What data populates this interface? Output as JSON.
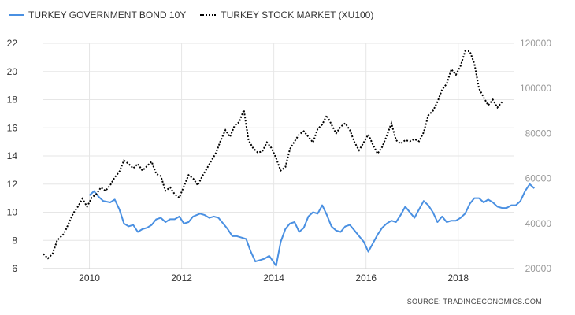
{
  "legend": {
    "series1": "TURKEY GOVERNMENT BOND 10Y",
    "series2": "TURKEY STOCK MARKET (XU100)"
  },
  "source": "SOURCE:  TRADINGECONOMICS.COM",
  "colors": {
    "bond": "#4a90e2",
    "stock": "#000000",
    "grid": "#e6e6e6"
  },
  "chart_data": {
    "type": "line",
    "grid": true,
    "legend_position": "top-left",
    "x_ticks": [
      2010,
      2012,
      2014,
      2016,
      2018
    ],
    "xlim": [
      2009.0,
      2019.2
    ],
    "y_left": {
      "ticks": [
        6,
        8,
        10,
        12,
        14,
        16,
        18,
        20,
        22
      ],
      "lim": [
        6,
        22
      ]
    },
    "y_right": {
      "ticks": [
        20000,
        40000,
        60000,
        80000,
        100000,
        120000
      ],
      "lim": [
        20000,
        120000
      ]
    },
    "series": [
      {
        "name": "TURKEY GOVERNMENT BOND 10Y",
        "axis": "left",
        "style": "solid",
        "points": [
          [
            2010.0,
            11.2
          ],
          [
            2010.1,
            11.5
          ],
          [
            2010.2,
            11.1
          ],
          [
            2010.3,
            10.8
          ],
          [
            2010.45,
            10.7
          ],
          [
            2010.55,
            10.9
          ],
          [
            2010.65,
            10.2
          ],
          [
            2010.75,
            9.2
          ],
          [
            2010.85,
            9.0
          ],
          [
            2010.95,
            9.1
          ],
          [
            2011.05,
            8.6
          ],
          [
            2011.15,
            8.8
          ],
          [
            2011.25,
            8.9
          ],
          [
            2011.35,
            9.1
          ],
          [
            2011.45,
            9.5
          ],
          [
            2011.55,
            9.6
          ],
          [
            2011.65,
            9.3
          ],
          [
            2011.75,
            9.5
          ],
          [
            2011.85,
            9.5
          ],
          [
            2011.95,
            9.7
          ],
          [
            2012.05,
            9.2
          ],
          [
            2012.15,
            9.3
          ],
          [
            2012.25,
            9.7
          ],
          [
            2012.4,
            9.9
          ],
          [
            2012.5,
            9.8
          ],
          [
            2012.6,
            9.6
          ],
          [
            2012.7,
            9.7
          ],
          [
            2012.8,
            9.6
          ],
          [
            2012.9,
            9.2
          ],
          [
            2013.0,
            8.8
          ],
          [
            2013.1,
            8.3
          ],
          [
            2013.2,
            8.3
          ],
          [
            2013.3,
            8.2
          ],
          [
            2013.4,
            8.1
          ],
          [
            2013.5,
            7.2
          ],
          [
            2013.6,
            6.5
          ],
          [
            2013.7,
            6.6
          ],
          [
            2013.8,
            6.7
          ],
          [
            2013.9,
            6.9
          ],
          [
            2014.05,
            6.2
          ],
          [
            2014.15,
            7.9
          ],
          [
            2014.25,
            8.8
          ],
          [
            2014.35,
            9.2
          ],
          [
            2014.45,
            9.3
          ],
          [
            2014.55,
            8.6
          ],
          [
            2014.65,
            8.9
          ],
          [
            2014.75,
            9.7
          ],
          [
            2014.85,
            10.0
          ],
          [
            2014.95,
            9.9
          ],
          [
            2015.05,
            10.5
          ],
          [
            2015.15,
            9.8
          ],
          [
            2015.25,
            9.0
          ],
          [
            2015.35,
            8.7
          ],
          [
            2015.45,
            8.6
          ],
          [
            2015.55,
            9.0
          ],
          [
            2015.65,
            9.1
          ],
          [
            2015.75,
            8.7
          ],
          [
            2015.85,
            8.3
          ],
          [
            2015.95,
            7.9
          ],
          [
            2016.05,
            7.2
          ],
          [
            2016.15,
            7.8
          ],
          [
            2016.25,
            8.4
          ],
          [
            2016.35,
            8.9
          ],
          [
            2016.45,
            9.2
          ],
          [
            2016.55,
            9.4
          ],
          [
            2016.65,
            9.3
          ],
          [
            2016.75,
            9.8
          ],
          [
            2016.85,
            10.4
          ],
          [
            2016.95,
            10.0
          ],
          [
            2017.05,
            9.6
          ],
          [
            2017.15,
            10.2
          ],
          [
            2017.25,
            10.8
          ],
          [
            2017.35,
            10.5
          ],
          [
            2017.45,
            10.0
          ],
          [
            2017.55,
            9.3
          ],
          [
            2017.65,
            9.7
          ],
          [
            2017.75,
            9.3
          ],
          [
            2017.85,
            9.4
          ],
          [
            2017.95,
            9.4
          ],
          [
            2018.05,
            9.6
          ],
          [
            2018.15,
            9.9
          ],
          [
            2018.25,
            10.6
          ],
          [
            2018.35,
            11.0
          ],
          [
            2018.45,
            11.0
          ],
          [
            2018.55,
            10.7
          ],
          [
            2018.65,
            10.9
          ],
          [
            2018.75,
            10.7
          ],
          [
            2018.85,
            10.4
          ],
          [
            2018.95,
            10.3
          ],
          [
            2019.05,
            10.3
          ],
          [
            2019.15,
            10.5
          ],
          [
            2019.25,
            10.5
          ],
          [
            2019.35,
            10.8
          ],
          [
            2019.45,
            11.5
          ],
          [
            2019.55,
            12.0
          ],
          [
            2019.65,
            11.7
          ]
        ]
      },
      {
        "name": "TURKEY STOCK MARKET (XU100)",
        "axis": "right",
        "style": "dotted",
        "points": [
          [
            2009.0,
            26500
          ],
          [
            2009.1,
            24500
          ],
          [
            2009.2,
            26500
          ],
          [
            2009.3,
            32500
          ],
          [
            2009.45,
            35500
          ],
          [
            2009.55,
            40000
          ],
          [
            2009.65,
            44500
          ],
          [
            2009.75,
            47500
          ],
          [
            2009.85,
            51000
          ],
          [
            2009.95,
            47500
          ],
          [
            2010.05,
            51500
          ],
          [
            2010.15,
            53000
          ],
          [
            2010.25,
            56000
          ],
          [
            2010.35,
            54500
          ],
          [
            2010.45,
            57000
          ],
          [
            2010.55,
            60500
          ],
          [
            2010.65,
            63000
          ],
          [
            2010.75,
            68000
          ],
          [
            2010.85,
            66500
          ],
          [
            2010.95,
            64500
          ],
          [
            2011.05,
            66500
          ],
          [
            2011.15,
            63500
          ],
          [
            2011.25,
            65500
          ],
          [
            2011.35,
            67500
          ],
          [
            2011.45,
            62000
          ],
          [
            2011.55,
            61000
          ],
          [
            2011.65,
            54500
          ],
          [
            2011.75,
            56000
          ],
          [
            2011.85,
            53000
          ],
          [
            2011.95,
            51500
          ],
          [
            2012.05,
            56500
          ],
          [
            2012.15,
            61500
          ],
          [
            2012.25,
            60000
          ],
          [
            2012.35,
            57000
          ],
          [
            2012.45,
            61000
          ],
          [
            2012.55,
            64500
          ],
          [
            2012.65,
            68000
          ],
          [
            2012.75,
            71500
          ],
          [
            2012.85,
            77000
          ],
          [
            2012.95,
            81500
          ],
          [
            2013.05,
            78500
          ],
          [
            2013.15,
            83500
          ],
          [
            2013.25,
            85000
          ],
          [
            2013.35,
            90500
          ],
          [
            2013.45,
            77000
          ],
          [
            2013.55,
            73500
          ],
          [
            2013.65,
            71500
          ],
          [
            2013.75,
            72000
          ],
          [
            2013.85,
            76000
          ],
          [
            2013.95,
            73500
          ],
          [
            2014.05,
            69000
          ],
          [
            2014.15,
            63500
          ],
          [
            2014.25,
            65000
          ],
          [
            2014.35,
            73000
          ],
          [
            2014.45,
            76500
          ],
          [
            2014.55,
            79500
          ],
          [
            2014.65,
            81000
          ],
          [
            2014.75,
            78500
          ],
          [
            2014.85,
            76000
          ],
          [
            2014.95,
            82000
          ],
          [
            2015.05,
            84000
          ],
          [
            2015.15,
            88000
          ],
          [
            2015.25,
            84000
          ],
          [
            2015.35,
            80000
          ],
          [
            2015.45,
            83000
          ],
          [
            2015.55,
            84500
          ],
          [
            2015.65,
            81500
          ],
          [
            2015.75,
            76000
          ],
          [
            2015.85,
            72500
          ],
          [
            2015.95,
            76000
          ],
          [
            2016.05,
            79500
          ],
          [
            2016.15,
            75000
          ],
          [
            2016.25,
            71000
          ],
          [
            2016.35,
            74000
          ],
          [
            2016.45,
            79000
          ],
          [
            2016.55,
            84500
          ],
          [
            2016.65,
            77000
          ],
          [
            2016.75,
            75500
          ],
          [
            2016.85,
            77000
          ],
          [
            2016.95,
            76500
          ],
          [
            2017.05,
            77500
          ],
          [
            2017.15,
            76500
          ],
          [
            2017.25,
            80500
          ],
          [
            2017.35,
            88000
          ],
          [
            2017.45,
            90000
          ],
          [
            2017.55,
            94000
          ],
          [
            2017.65,
            99500
          ],
          [
            2017.75,
            102000
          ],
          [
            2017.85,
            108500
          ],
          [
            2017.95,
            106000
          ],
          [
            2018.05,
            110000
          ],
          [
            2018.15,
            116500
          ],
          [
            2018.25,
            116500
          ],
          [
            2018.35,
            111000
          ],
          [
            2018.45,
            100000
          ],
          [
            2018.55,
            96000
          ],
          [
            2018.65,
            92500
          ],
          [
            2018.75,
            95000
          ],
          [
            2018.85,
            91500
          ],
          [
            2018.95,
            94000
          ]
        ]
      }
    ]
  }
}
